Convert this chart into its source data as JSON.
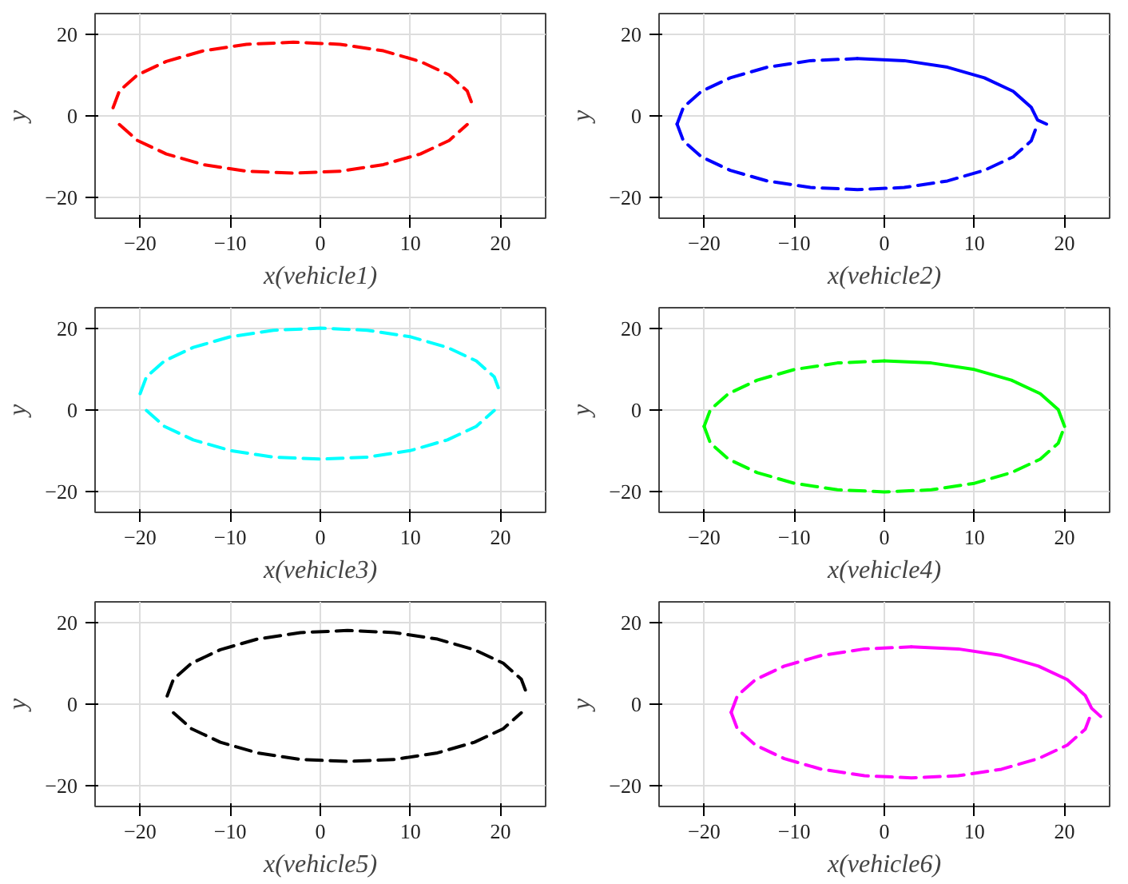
{
  "chart_data": [
    {
      "type": "line",
      "xlabel": "x(vehicle1)",
      "ylabel": "y",
      "xlim": [
        -25,
        25
      ],
      "ylim": [
        -25,
        25
      ],
      "xticks": [
        -20,
        -10,
        0,
        10,
        20
      ],
      "yticks": [
        -20,
        0,
        20
      ],
      "grid": true,
      "series": [
        {
          "color": "#ff0000",
          "line_style": "dashed",
          "x": [
            -23,
            -22.3,
            -20.3,
            -17.1,
            -13,
            -8.2,
            -3,
            2.2,
            7,
            11.1,
            14.3,
            16.3,
            17
          ],
          "values": [
            2,
            6.1,
            10,
            13.3,
            15.9,
            17.5,
            18,
            17.5,
            15.9,
            13.3,
            10,
            6.1,
            2
          ]
        },
        {
          "color": "#ff0000",
          "line_style": "dashed",
          "x": [
            -22.3,
            -20.3,
            -17.1,
            -13,
            -8.2,
            -3,
            2.2,
            7,
            11.1,
            14.3,
            16.3
          ],
          "values": [
            -2.1,
            -6,
            -9.3,
            -11.9,
            -13.5,
            -14,
            -13.5,
            -11.9,
            -9.3,
            -6,
            -2.1
          ]
        }
      ]
    },
    {
      "type": "line",
      "xlabel": "x(vehicle2)",
      "ylabel": "y",
      "xlim": [
        -25,
        25
      ],
      "ylim": [
        -25,
        25
      ],
      "xticks": [
        -20,
        -10,
        0,
        10,
        20
      ],
      "yticks": [
        -20,
        0,
        20
      ],
      "grid": true,
      "series": [
        {
          "color": "#0000ff",
          "line_style": "dashed",
          "x": [
            -23,
            -22.3,
            -20.3,
            -17.1,
            -13,
            -8.2,
            -3
          ],
          "values": [
            -2,
            2.1,
            6,
            9.3,
            11.9,
            13.5,
            14
          ]
        },
        {
          "color": "#0000ff",
          "line_style": "dashed",
          "x": [
            -23,
            -22.3,
            -20.3,
            -17.1,
            -13,
            -8.2,
            -3,
            2.2,
            7,
            11.1,
            14.3,
            16.3,
            17
          ],
          "values": [
            -2,
            -6.1,
            -10,
            -13.3,
            -15.9,
            -17.5,
            -18,
            -17.5,
            -15.9,
            -13.3,
            -10,
            -6.1,
            -2
          ]
        },
        {
          "color": "#0000ff",
          "line_style": "solid",
          "x": [
            -3,
            2.2,
            7,
            11.1,
            14.3,
            16.3,
            17,
            18
          ],
          "values": [
            14,
            13.5,
            11.9,
            9.3,
            6,
            2.1,
            -1,
            -2
          ]
        }
      ]
    },
    {
      "type": "line",
      "xlabel": "x(vehicle3)",
      "ylabel": "y",
      "xlim": [
        -25,
        25
      ],
      "ylim": [
        -25,
        25
      ],
      "xticks": [
        -20,
        -10,
        0,
        10,
        20
      ],
      "yticks": [
        -20,
        0,
        20
      ],
      "grid": true,
      "series": [
        {
          "color": "#00ffff",
          "line_style": "dashed",
          "x": [
            -20,
            -19.3,
            -17.3,
            -14.1,
            -10,
            -5.2,
            0,
            5.2,
            10,
            14.1,
            17.3,
            19.3,
            20
          ],
          "values": [
            4,
            8.1,
            12,
            15.3,
            17.9,
            19.5,
            20,
            19.5,
            17.9,
            15.3,
            12,
            8.1,
            4
          ]
        },
        {
          "color": "#00ffff",
          "line_style": "dashed",
          "x": [
            -19.3,
            -17.3,
            -14.1,
            -10,
            -5.2,
            0,
            5.2,
            10,
            14.1,
            17.3,
            19.3
          ],
          "values": [
            -0.1,
            -4,
            -7.3,
            -9.9,
            -11.5,
            -12,
            -11.5,
            -9.9,
            -7.3,
            -4,
            -0.1
          ]
        }
      ]
    },
    {
      "type": "line",
      "xlabel": "x(vehicle4)",
      "ylabel": "y",
      "xlim": [
        -25,
        25
      ],
      "ylim": [
        -25,
        25
      ],
      "xticks": [
        -20,
        -10,
        0,
        10,
        20
      ],
      "yticks": [
        -20,
        0,
        20
      ],
      "grid": true,
      "series": [
        {
          "color": "#00ff00",
          "line_style": "dashed",
          "x": [
            -20,
            -19.3,
            -17.3,
            -14.1,
            -10,
            -5.2,
            0
          ],
          "values": [
            -4,
            0.1,
            4,
            7.3,
            9.9,
            11.5,
            12
          ]
        },
        {
          "color": "#00ff00",
          "line_style": "dashed",
          "x": [
            -20,
            -19.3,
            -17.3,
            -14.1,
            -10,
            -5.2,
            0,
            5.2,
            10,
            14.1,
            17.3,
            19.3,
            20
          ],
          "values": [
            -4,
            -8.1,
            -12,
            -15.3,
            -17.9,
            -19.5,
            -20,
            -19.5,
            -17.9,
            -15.3,
            -12,
            -8.1,
            -4
          ]
        },
        {
          "color": "#00ff00",
          "line_style": "solid",
          "x": [
            0,
            5.2,
            10,
            14.1,
            17.3,
            19.3,
            20
          ],
          "values": [
            12,
            11.5,
            9.9,
            7.3,
            4,
            0.1,
            -4
          ]
        }
      ]
    },
    {
      "type": "line",
      "xlabel": "x(vehicle5)",
      "ylabel": "y",
      "xlim": [
        -25,
        25
      ],
      "ylim": [
        -25,
        25
      ],
      "xticks": [
        -20,
        -10,
        0,
        10,
        20
      ],
      "yticks": [
        -20,
        0,
        20
      ],
      "grid": true,
      "series": [
        {
          "color": "#000000",
          "line_style": "dashed",
          "x": [
            -17,
            -16.3,
            -14.3,
            -11.1,
            -7,
            -2.2,
            3,
            8.2,
            13,
            17.1,
            20.3,
            22.3,
            23
          ],
          "values": [
            2,
            6.1,
            10,
            13.3,
            15.9,
            17.5,
            18,
            17.5,
            15.9,
            13.3,
            10,
            6.1,
            2
          ]
        },
        {
          "color": "#000000",
          "line_style": "dashed",
          "x": [
            -16.3,
            -14.3,
            -11.1,
            -7,
            -2.2,
            3,
            8.2,
            13,
            17.1,
            20.3,
            22.3
          ],
          "values": [
            -2.1,
            -6,
            -9.3,
            -11.9,
            -13.5,
            -14,
            -13.5,
            -11.9,
            -9.3,
            -6,
            -2.1
          ]
        }
      ]
    },
    {
      "type": "line",
      "xlabel": "x(vehicle6)",
      "ylabel": "y",
      "xlim": [
        -25,
        25
      ],
      "ylim": [
        -25,
        25
      ],
      "xticks": [
        -20,
        -10,
        0,
        10,
        20
      ],
      "yticks": [
        -20,
        0,
        20
      ],
      "grid": true,
      "series": [
        {
          "color": "#ff00ff",
          "line_style": "dashed",
          "x": [
            -17,
            -16.3,
            -14.3,
            -11.1,
            -7,
            -2.2,
            3
          ],
          "values": [
            -2,
            2.1,
            6,
            9.3,
            11.9,
            13.5,
            14
          ]
        },
        {
          "color": "#ff00ff",
          "line_style": "dashed",
          "x": [
            -17,
            -16.3,
            -14.3,
            -11.1,
            -7,
            -2.2,
            3,
            8.2,
            13,
            17.1,
            20.3,
            22.3,
            23
          ],
          "values": [
            -2,
            -6.1,
            -10,
            -13.3,
            -15.9,
            -17.5,
            -18,
            -17.5,
            -15.9,
            -13.3,
            -10,
            -6.1,
            -2
          ]
        },
        {
          "color": "#ff00ff",
          "line_style": "solid",
          "x": [
            3,
            8.2,
            13,
            17.1,
            20.3,
            22.3,
            23,
            24
          ],
          "values": [
            14,
            13.5,
            11.9,
            9.3,
            6,
            2.1,
            -1,
            -3
          ]
        }
      ]
    }
  ]
}
